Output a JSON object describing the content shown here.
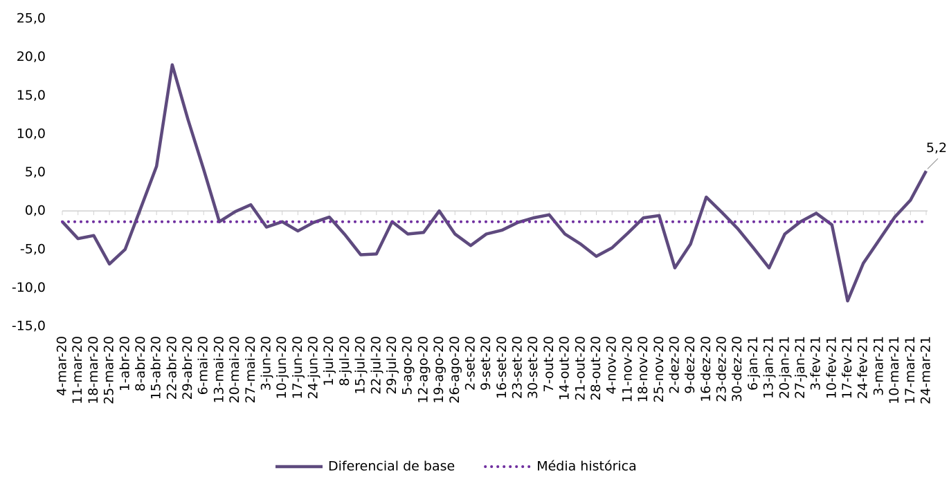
{
  "chart_data": {
    "type": "line",
    "categories": [
      "4-mar-20",
      "11-mar-20",
      "18-mar-20",
      "25-mar-20",
      "1-abr-20",
      "8-abr-20",
      "15-abr-20",
      "22-abr-20",
      "29-abr-20",
      "6-mai-20",
      "13-mai-20",
      "20-mai-20",
      "27-mai-20",
      "3-jun-20",
      "10-jun-20",
      "17-jun-20",
      "24-jun-20",
      "1-jul-20",
      "8-jul-20",
      "15-jul-20",
      "22-jul-20",
      "29-jul-20",
      "5-ago-20",
      "12-ago-20",
      "19-ago-20",
      "26-ago-20",
      "2-set-20",
      "9-set-20",
      "16-set-20",
      "23-set-20",
      "30-set-20",
      "7-out-20",
      "14-out-20",
      "21-out-20",
      "28-out-20",
      "4-nov-20",
      "11-nov-20",
      "18-nov-20",
      "25-nov-20",
      "2-dez-20",
      "9-dez-20",
      "16-dez-20",
      "23-dez-20",
      "30-dez-20",
      "6-jan-21",
      "13-jan-21",
      "20-jan-21",
      "27-jan-21",
      "3-fev-21",
      "10-fev-21",
      "17-fev-21",
      "24-fev-21",
      "3-mar-21",
      "10-mar-21",
      "17-mar-21",
      "24-mar-21"
    ],
    "series": [
      {
        "name": "Diferencial de base",
        "color": "#5e4a7e",
        "style": "solid",
        "values": [
          -1.4,
          -3.6,
          -3.2,
          -6.9,
          -5.0,
          0.4,
          5.8,
          19.0,
          11.9,
          5.4,
          -1.4,
          -0.1,
          0.8,
          -2.1,
          -1.4,
          -2.6,
          -1.5,
          -0.8,
          -3.1,
          -5.7,
          -5.6,
          -1.4,
          -3.0,
          -2.8,
          0.0,
          -3.0,
          -4.5,
          -3.0,
          -2.5,
          -1.5,
          -0.9,
          -0.5,
          -3.0,
          -4.3,
          -5.9,
          -4.8,
          -2.9,
          -0.9,
          -0.6,
          -7.4,
          -4.3,
          1.8,
          -0.2,
          -2.3,
          -4.8,
          -7.4,
          -3.0,
          -1.4,
          -0.3,
          -1.8,
          -11.7,
          -6.8,
          -3.8,
          -0.8,
          1.4,
          5.2
        ],
        "value_labels": [
          null,
          null,
          null,
          null,
          null,
          null,
          null,
          null,
          null,
          null,
          null,
          null,
          null,
          null,
          null,
          null,
          null,
          null,
          null,
          null,
          null,
          null,
          null,
          null,
          null,
          null,
          null,
          null,
          null,
          null,
          null,
          null,
          null,
          null,
          null,
          null,
          null,
          null,
          null,
          null,
          null,
          null,
          null,
          null,
          null,
          null,
          null,
          null,
          null,
          null,
          null,
          null,
          null,
          null,
          null,
          "5,2"
        ]
      },
      {
        "name": "Média histórica",
        "color": "#7030a0",
        "style": "dotted",
        "values": [
          -1.4,
          -1.4,
          -1.4,
          -1.4,
          -1.4,
          -1.4,
          -1.4,
          -1.4,
          -1.4,
          -1.4,
          -1.4,
          -1.4,
          -1.4,
          -1.4,
          -1.4,
          -1.4,
          -1.4,
          -1.4,
          -1.4,
          -1.4,
          -1.4,
          -1.4,
          -1.4,
          -1.4,
          -1.4,
          -1.4,
          -1.4,
          -1.4,
          -1.4,
          -1.4,
          -1.4,
          -1.4,
          -1.4,
          -1.4,
          -1.4,
          -1.4,
          -1.4,
          -1.4,
          -1.4,
          -1.4,
          -1.4,
          -1.4,
          -1.4,
          -1.4,
          -1.4,
          -1.4,
          -1.4,
          -1.4,
          -1.4,
          -1.4,
          -1.4,
          -1.4,
          -1.4,
          -1.4,
          -1.4,
          -1.4
        ]
      }
    ],
    "ylim": [
      -15,
      25
    ],
    "yticks": [
      {
        "value": -15,
        "label": "-15,0"
      },
      {
        "value": -10,
        "label": "-10,0"
      },
      {
        "value": -5,
        "label": "-5,0"
      },
      {
        "value": 0,
        "label": "0,0"
      },
      {
        "value": 5,
        "label": "5,0"
      },
      {
        "value": 10,
        "label": "10,0"
      },
      {
        "value": 15,
        "label": "15,0"
      },
      {
        "value": 20,
        "label": "20,0"
      },
      {
        "value": 25,
        "label": "25,0"
      }
    ],
    "grid": false,
    "legend": "bottom"
  }
}
